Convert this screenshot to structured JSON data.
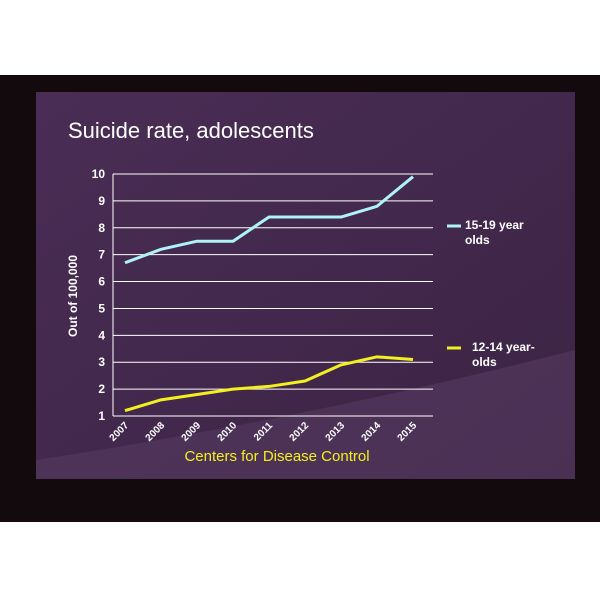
{
  "chart_data": {
    "type": "line",
    "title": "Suicide rate, adolescents",
    "ylabel": "Out of 100,000",
    "source": "Centers for Disease Control",
    "categories": [
      "2007",
      "2008",
      "2009",
      "2010",
      "2011",
      "2012",
      "2013",
      "2014",
      "2015"
    ],
    "series": [
      {
        "name": "15-19 year olds",
        "color": "#aef3f6",
        "values": [
          6.7,
          7.2,
          7.5,
          7.5,
          8.4,
          8.4,
          8.4,
          8.8,
          9.9
        ]
      },
      {
        "name": "12-14 year-olds",
        "color": "#f3f020",
        "values": [
          1.2,
          1.6,
          1.8,
          2.0,
          2.1,
          2.3,
          2.9,
          3.2,
          3.1
        ]
      }
    ],
    "ylim": [
      1,
      10
    ],
    "yticks": [
      1,
      2,
      3,
      4,
      5,
      6,
      7,
      8,
      9,
      10
    ],
    "grid": true
  }
}
